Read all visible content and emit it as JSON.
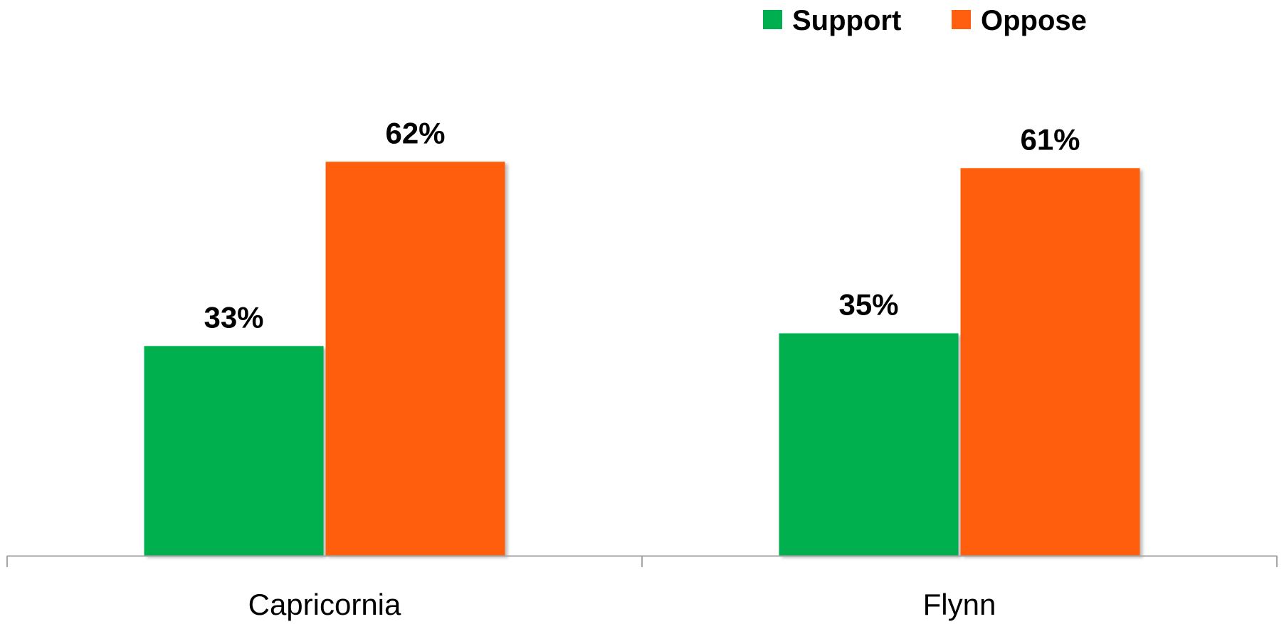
{
  "chart_data": {
    "type": "bar",
    "categories": [
      "Capricornia",
      "Flynn"
    ],
    "series": [
      {
        "name": "Support",
        "values": [
          33,
          35
        ],
        "labels": [
          "33%",
          "35%"
        ],
        "color": "#00B050"
      },
      {
        "name": "Oppose",
        "values": [
          62,
          61
        ],
        "labels": [
          "62%",
          "61%"
        ],
        "color": "#FF5F0F"
      }
    ],
    "ylim": [
      0,
      100
    ],
    "grid": false,
    "legend_position": "top-right",
    "axis_color": "#A6A6A6"
  }
}
